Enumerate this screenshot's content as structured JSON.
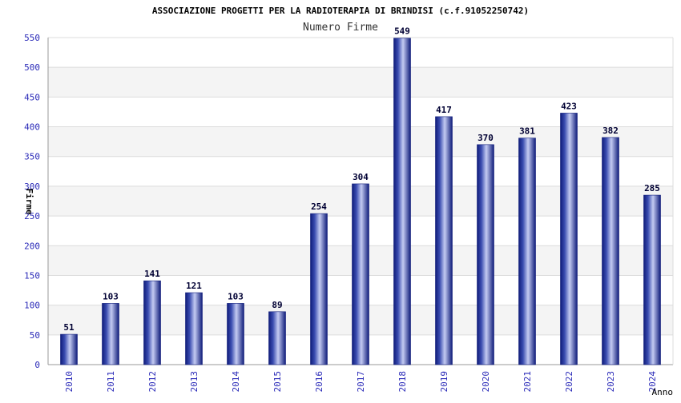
{
  "chart_data": {
    "type": "bar",
    "title": "ASSOCIAZIONE PROGETTI PER LA RADIOTERAPIA DI BRINDISI (c.f.91052250742)",
    "subtitle": "Numero Firme",
    "xlabel": "Anno",
    "ylabel": "Firme",
    "categories": [
      "2010",
      "2011",
      "2012",
      "2013",
      "2014",
      "2015",
      "2016",
      "2017",
      "2018",
      "2019",
      "2020",
      "2021",
      "2022",
      "2023",
      "2024"
    ],
    "values": [
      51,
      103,
      141,
      121,
      103,
      89,
      254,
      304,
      549,
      417,
      370,
      381,
      423,
      382,
      285
    ],
    "data_labels": [
      "51",
      "103",
      "141",
      "121",
      "103",
      "89",
      "254",
      "304",
      "549",
      "417",
      "370",
      "381",
      "423",
      "382",
      "285"
    ],
    "yticks": [
      "0",
      "50",
      "100",
      "150",
      "200",
      "250",
      "300",
      "350",
      "400",
      "450",
      "500",
      "550"
    ],
    "ylim": [
      0,
      550
    ],
    "grid": true,
    "colors": {
      "bar_edge": "#0f1c7a",
      "bar_mid": "#3a4cb0",
      "bar_highlight": "#c4cbf2",
      "band_light": "#f4f4f4",
      "band_white": "#ffffff",
      "tick_label": "#2a2ab8",
      "title": "#000000",
      "data_label": "#000033"
    }
  }
}
